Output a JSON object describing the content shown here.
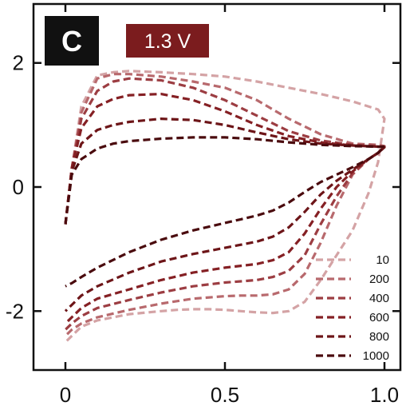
{
  "panel_label": "C",
  "voltage_badge": "1.3 V",
  "colors": {
    "badge_background": "#7b1c1e",
    "panel_background": "#111111"
  },
  "chart_data": {
    "type": "line",
    "title": "",
    "xlabel": "",
    "ylabel": "",
    "xlim": [
      -0.1,
      1.05
    ],
    "ylim": [
      -2.95,
      2.95
    ],
    "x_ticks": [
      0,
      0.5,
      1.0
    ],
    "x_tick_labels": [
      "0",
      "0.5",
      "1.0"
    ],
    "y_ticks": [
      -2,
      0,
      2
    ],
    "y_tick_labels": [
      "-2",
      "0",
      "2"
    ],
    "line_style": "dashed",
    "legend_position": "bottom-right",
    "series": [
      {
        "name": "10",
        "color": "#d4a3a5",
        "x": [
          0,
          0.02,
          0.05,
          0.1,
          0.15,
          0.2,
          0.3,
          0.4,
          0.5,
          0.6,
          0.7,
          0.8,
          0.9,
          0.98,
          1.0,
          0.98,
          0.95,
          0.9,
          0.8,
          0.75,
          0.7,
          0.65,
          0.6,
          0.55,
          0.5,
          0.45,
          0.4,
          0.35,
          0.3,
          0.2,
          0.1,
          0.05,
          0.02,
          0
        ],
        "y": [
          -0.6,
          0.3,
          1.3,
          1.8,
          1.85,
          1.87,
          1.85,
          1.82,
          1.78,
          1.7,
          1.6,
          1.5,
          1.38,
          1.25,
          1.1,
          0.4,
          -0.1,
          -0.7,
          -1.5,
          -1.85,
          -2.0,
          -2.03,
          -2.02,
          -2.0,
          -1.98,
          -1.97,
          -1.97,
          -1.98,
          -2.0,
          -2.05,
          -2.15,
          -2.25,
          -2.4,
          -2.5
        ]
      },
      {
        "name": "200",
        "color": "#b8696d",
        "x": [
          0,
          0.02,
          0.05,
          0.1,
          0.15,
          0.2,
          0.3,
          0.4,
          0.5,
          0.6,
          0.7,
          0.8,
          0.9,
          0.98,
          1.0,
          0.98,
          0.95,
          0.9,
          0.85,
          0.8,
          0.75,
          0.7,
          0.65,
          0.6,
          0.55,
          0.5,
          0.4,
          0.3,
          0.2,
          0.1,
          0.05,
          0.02,
          0
        ],
        "y": [
          -0.6,
          0.3,
          1.2,
          1.75,
          1.82,
          1.82,
          1.78,
          1.7,
          1.6,
          1.4,
          1.1,
          0.85,
          0.7,
          0.68,
          0.66,
          0.55,
          0.45,
          0.2,
          -0.3,
          -0.9,
          -1.4,
          -1.65,
          -1.73,
          -1.75,
          -1.75,
          -1.76,
          -1.8,
          -1.88,
          -1.98,
          -2.1,
          -2.2,
          -2.3,
          -2.4
        ]
      },
      {
        "name": "400",
        "color": "#9c3d42",
        "x": [
          0,
          0.02,
          0.05,
          0.1,
          0.15,
          0.2,
          0.3,
          0.4,
          0.5,
          0.6,
          0.7,
          0.8,
          0.9,
          0.98,
          1.0,
          0.98,
          0.95,
          0.9,
          0.85,
          0.8,
          0.75,
          0.7,
          0.65,
          0.6,
          0.55,
          0.5,
          0.4,
          0.3,
          0.2,
          0.1,
          0.05,
          0.02,
          0
        ],
        "y": [
          -0.6,
          0.3,
          1.1,
          1.55,
          1.7,
          1.75,
          1.72,
          1.6,
          1.4,
          1.15,
          0.9,
          0.75,
          0.68,
          0.66,
          0.65,
          0.55,
          0.45,
          0.22,
          -0.15,
          -0.6,
          -1.1,
          -1.35,
          -1.45,
          -1.5,
          -1.52,
          -1.54,
          -1.6,
          -1.7,
          -1.82,
          -1.95,
          -2.08,
          -2.2,
          -2.3
        ]
      },
      {
        "name": "600",
        "color": "#852024",
        "x": [
          0,
          0.02,
          0.05,
          0.1,
          0.15,
          0.2,
          0.3,
          0.4,
          0.5,
          0.6,
          0.7,
          0.8,
          0.9,
          0.98,
          1.0,
          0.98,
          0.95,
          0.9,
          0.85,
          0.8,
          0.75,
          0.7,
          0.65,
          0.6,
          0.55,
          0.5,
          0.4,
          0.3,
          0.2,
          0.1,
          0.05,
          0.02,
          0
        ],
        "y": [
          -0.6,
          0.3,
          0.95,
          1.3,
          1.42,
          1.48,
          1.5,
          1.4,
          1.22,
          1.0,
          0.82,
          0.72,
          0.67,
          0.65,
          0.64,
          0.55,
          0.45,
          0.25,
          0.0,
          -0.35,
          -0.75,
          -1.05,
          -1.18,
          -1.24,
          -1.27,
          -1.3,
          -1.38,
          -1.5,
          -1.65,
          -1.8,
          -1.95,
          -2.1,
          -2.2
        ]
      },
      {
        "name": "800",
        "color": "#6d1518",
        "x": [
          0,
          0.02,
          0.05,
          0.1,
          0.15,
          0.2,
          0.3,
          0.4,
          0.5,
          0.6,
          0.7,
          0.8,
          0.9,
          0.98,
          1.0,
          0.98,
          0.95,
          0.9,
          0.85,
          0.8,
          0.75,
          0.7,
          0.65,
          0.6,
          0.55,
          0.5,
          0.4,
          0.3,
          0.2,
          0.1,
          0.05,
          0.02,
          0
        ],
        "y": [
          -0.6,
          0.25,
          0.7,
          0.92,
          1.0,
          1.05,
          1.1,
          1.08,
          1.0,
          0.88,
          0.77,
          0.7,
          0.67,
          0.65,
          0.64,
          0.55,
          0.45,
          0.28,
          0.1,
          -0.12,
          -0.4,
          -0.65,
          -0.8,
          -0.88,
          -0.93,
          -0.98,
          -1.08,
          -1.2,
          -1.38,
          -1.6,
          -1.75,
          -1.9,
          -2.0
        ]
      },
      {
        "name": "1000",
        "color": "#4a0b0e",
        "x": [
          0,
          0.02,
          0.05,
          0.1,
          0.15,
          0.2,
          0.3,
          0.4,
          0.5,
          0.6,
          0.7,
          0.8,
          0.9,
          0.98,
          1.0,
          0.98,
          0.95,
          0.9,
          0.85,
          0.8,
          0.75,
          0.7,
          0.65,
          0.6,
          0.55,
          0.5,
          0.4,
          0.3,
          0.2,
          0.1,
          0.05,
          0.02,
          0
        ],
        "y": [
          -0.6,
          0.2,
          0.45,
          0.62,
          0.7,
          0.74,
          0.78,
          0.8,
          0.8,
          0.77,
          0.72,
          0.68,
          0.66,
          0.65,
          0.65,
          0.55,
          0.45,
          0.32,
          0.2,
          0.08,
          -0.08,
          -0.25,
          -0.38,
          -0.46,
          -0.52,
          -0.58,
          -0.7,
          -0.85,
          -1.05,
          -1.3,
          -1.45,
          -1.55,
          -1.6
        ]
      }
    ]
  }
}
